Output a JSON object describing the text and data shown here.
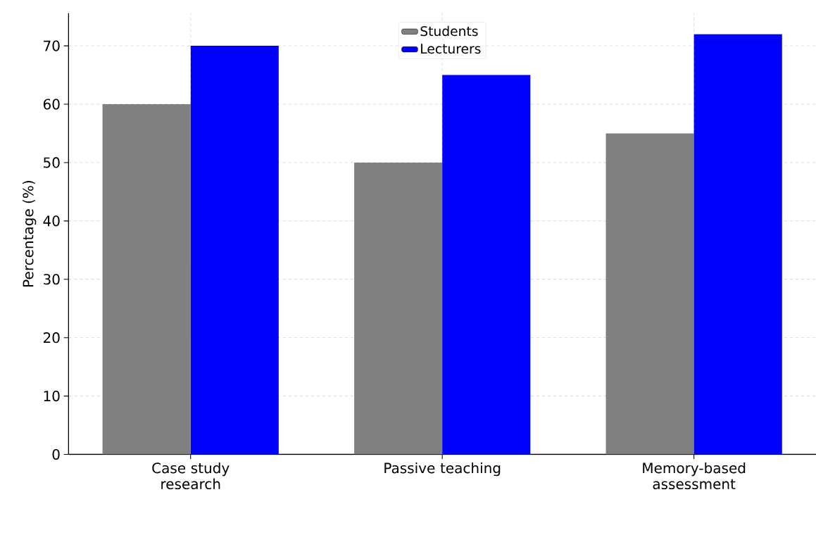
{
  "chart_data": {
    "type": "bar",
    "ylabel": "Percentage (%)",
    "categories": [
      "Case study research",
      "Passive teaching",
      "Memory-based assessment"
    ],
    "series": [
      {
        "name": "Students",
        "color": "#808080",
        "values": [
          60,
          50,
          55
        ]
      },
      {
        "name": "Lecturers",
        "color": "#0000ff",
        "values": [
          70,
          65,
          72
        ]
      }
    ],
    "ylim": [
      0,
      75.6
    ],
    "yticks": [
      0,
      10,
      20,
      30,
      40,
      50,
      60,
      70
    ],
    "grid": true,
    "legend": "top"
  }
}
